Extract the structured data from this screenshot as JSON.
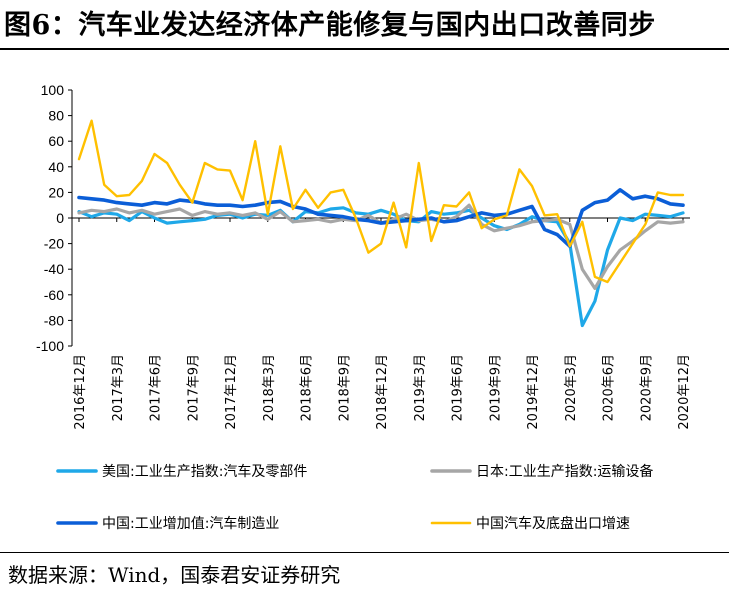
{
  "header": {
    "title": "图6：汽车业发达经济体产能修复与国内出口改善同步"
  },
  "footer": {
    "source": "数据来源：Wind，国泰君安证券研究"
  },
  "chart_data": {
    "type": "line",
    "title": "图6：汽车业发达经济体产能修复与国内出口改善同步",
    "xlabel": "",
    "ylabel": "",
    "ylim": [
      -100,
      100
    ],
    "yticks": [
      -100,
      -80,
      -60,
      -40,
      -20,
      0,
      20,
      40,
      60,
      80,
      100
    ],
    "grid": false,
    "legend_position": "bottom",
    "x": [
      "2016-12",
      "2017-01",
      "2017-02",
      "2017-03",
      "2017-04",
      "2017-05",
      "2017-06",
      "2017-07",
      "2017-08",
      "2017-09",
      "2017-10",
      "2017-11",
      "2017-12",
      "2018-01",
      "2018-02",
      "2018-03",
      "2018-04",
      "2018-05",
      "2018-06",
      "2018-07",
      "2018-08",
      "2018-09",
      "2018-10",
      "2018-11",
      "2018-12",
      "2019-01",
      "2019-02",
      "2019-03",
      "2019-04",
      "2019-05",
      "2019-06",
      "2019-07",
      "2019-08",
      "2019-09",
      "2019-10",
      "2019-11",
      "2019-12",
      "2020-01",
      "2020-02",
      "2020-03",
      "2020-04",
      "2020-05",
      "2020-06",
      "2020-07",
      "2020-08",
      "2020-09",
      "2020-10",
      "2020-11",
      "2020-12"
    ],
    "xtick_labels": [
      "2016年12月",
      "2017年3月",
      "2017年6月",
      "2017年9月",
      "2017年12月",
      "2018年3月",
      "2018年6月",
      "2018年9月",
      "2018年12月",
      "2019年3月",
      "2019年6月",
      "2019年9月",
      "2019年12月",
      "2020年3月",
      "2020年6月",
      "2020年9月",
      "2020年12月"
    ],
    "series": [
      {
        "name": "美国:工业生产指数:汽车及零部件",
        "color": "#1FA8E8",
        "values": [
          5,
          1,
          4,
          3,
          -2,
          5,
          0,
          -4,
          -3,
          -2,
          -1,
          2,
          3,
          0,
          3,
          2,
          6,
          -3,
          5,
          4,
          7,
          8,
          4,
          3,
          6,
          3,
          -2,
          -3,
          5,
          3,
          4,
          6,
          0,
          -6,
          -9,
          -5,
          1,
          -2,
          -3,
          -20,
          -84,
          -65,
          -25,
          0,
          -2,
          3,
          2,
          1,
          4
        ]
      },
      {
        "name": "日本:工业生产指数:运输设备",
        "color": "#A6A6A6",
        "values": [
          4,
          6,
          5,
          7,
          4,
          6,
          3,
          5,
          7,
          2,
          5,
          3,
          4,
          2,
          4,
          -1,
          5,
          -3,
          -2,
          -1,
          -3,
          -1,
          -2,
          2,
          -4,
          -1,
          3,
          -2,
          -1,
          -3,
          1,
          10,
          -5,
          -10,
          -8,
          -6,
          -3,
          -2,
          -1,
          -5,
          -40,
          -55,
          -38,
          -25,
          -18,
          -10,
          -3,
          -4,
          -3
        ]
      },
      {
        "name": "中国:工业增加值:汽车制造业",
        "color": "#0B5ED7",
        "values": [
          16,
          15,
          14,
          12,
          11,
          10,
          12,
          11,
          14,
          13,
          11,
          10,
          10,
          9,
          10,
          12,
          13,
          9,
          7,
          3,
          2,
          1,
          -1,
          -2,
          -4,
          -3,
          -2,
          -1,
          0,
          -3,
          -2,
          1,
          4,
          2,
          3,
          6,
          9,
          -9,
          -13,
          -22,
          6,
          12,
          14,
          22,
          15,
          17,
          15,
          11,
          10
        ]
      },
      {
        "name": "中国汽车及底盘出口增速",
        "color": "#FFC000",
        "values": [
          46,
          76,
          26,
          17,
          18,
          29,
          50,
          43,
          26,
          12,
          43,
          38,
          37,
          14,
          60,
          3,
          56,
          7,
          22,
          8,
          20,
          22,
          0,
          -27,
          -20,
          12,
          -23,
          43,
          -18,
          10,
          9,
          20,
          -8,
          -1,
          2,
          38,
          25,
          2,
          3,
          -22,
          -3,
          -46,
          -50,
          -35,
          -20,
          -5,
          20,
          18,
          18
        ]
      }
    ]
  }
}
